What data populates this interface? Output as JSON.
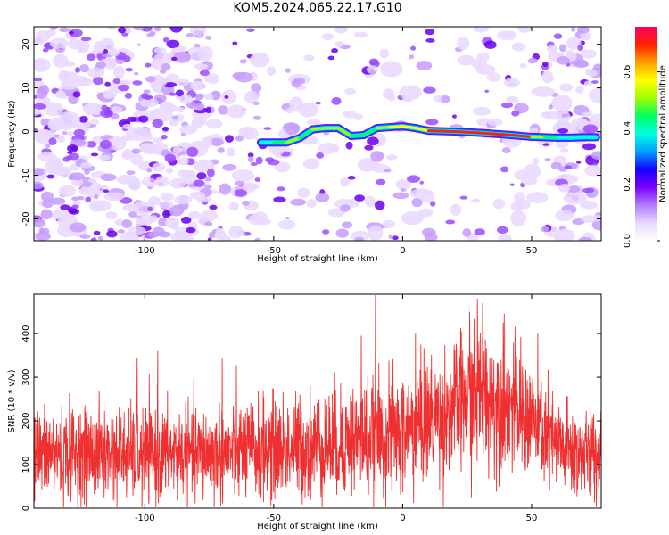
{
  "title": "KOM5.2024.065.22.17.G10",
  "chart_data": [
    {
      "type": "heatmap",
      "xlabel": "Height of straight line (km)",
      "ylabel": "Frequency (Hz)",
      "xlim": [
        -143,
        77
      ],
      "ylim": [
        -25,
        24
      ],
      "xticks": [
        -100,
        -50,
        0,
        50
      ],
      "yticks": [
        -20,
        -10,
        0,
        10,
        20
      ],
      "colorbar": {
        "label": "Normalized spectral amplitude",
        "range": [
          0.0,
          0.76
        ],
        "ticks": [
          0.0,
          0.2,
          0.4,
          0.6
        ],
        "colors": [
          "#ffffff",
          "#e8d8ff",
          "#b27cff",
          "#7a00ff",
          "#1400ff",
          "#00a0ff",
          "#00ffe0",
          "#00ff60",
          "#a0ff00",
          "#ffff00",
          "#ffa000",
          "#ff2000",
          "#ff0060"
        ]
      },
      "ridge": {
        "x": [
          -55,
          -50,
          -45,
          -40,
          -35,
          -30,
          -25,
          -20,
          -15,
          -10,
          -5,
          0,
          5,
          10,
          20,
          30,
          40,
          50,
          55,
          60,
          65,
          70,
          75
        ],
        "y": [
          -2.5,
          -2.5,
          -2.5,
          -1.5,
          0.5,
          0.8,
          0.8,
          -1.0,
          -0.8,
          0.8,
          1.0,
          1.2,
          0.8,
          0.2,
          0.0,
          -0.3,
          -0.7,
          -1.2,
          -1.3,
          -1.4,
          -1.4,
          -1.3,
          -1.3
        ],
        "amplitude": [
          0.35,
          0.4,
          0.5,
          0.45,
          0.45,
          0.55,
          0.5,
          0.45,
          0.45,
          0.45,
          0.5,
          0.6,
          0.55,
          0.65,
          0.75,
          0.7,
          0.75,
          0.6,
          0.45,
          0.4,
          0.4,
          0.35,
          0.35
        ]
      }
    },
    {
      "type": "line",
      "xlabel": "Height of straight line (km)",
      "ylabel": "SNR (10 * v/v)",
      "xlim": [
        -143,
        77
      ],
      "ylim": [
        0,
        490
      ],
      "xticks": [
        -100,
        -50,
        0,
        50
      ],
      "yticks": [
        0,
        100,
        200,
        300,
        400
      ],
      "color": "#f03030",
      "envelope": {
        "x": [
          -143,
          -120,
          -100,
          -80,
          -60,
          -40,
          -20,
          -10,
          0,
          10,
          20,
          30,
          40,
          50,
          60,
          70,
          77
        ],
        "mean": [
          125,
          125,
          120,
          125,
          130,
          140,
          155,
          165,
          170,
          200,
          230,
          255,
          240,
          200,
          140,
          120,
          125
        ],
        "spread": [
          70,
          70,
          70,
          70,
          75,
          80,
          85,
          90,
          95,
          95,
          100,
          105,
          100,
          90,
          75,
          70,
          70
        ]
      },
      "peaks": [
        {
          "x": -10.5,
          "y": 488
        },
        {
          "x": 29,
          "y": 480
        },
        {
          "x": 31,
          "y": 470
        },
        {
          "x": 26,
          "y": 450
        },
        {
          "x": -103,
          "y": 345
        },
        {
          "x": -95,
          "y": 360
        },
        {
          "x": -70,
          "y": 345
        },
        {
          "x": -16,
          "y": 395
        },
        {
          "x": 39,
          "y": 425
        },
        {
          "x": 5,
          "y": 400
        }
      ]
    }
  ]
}
